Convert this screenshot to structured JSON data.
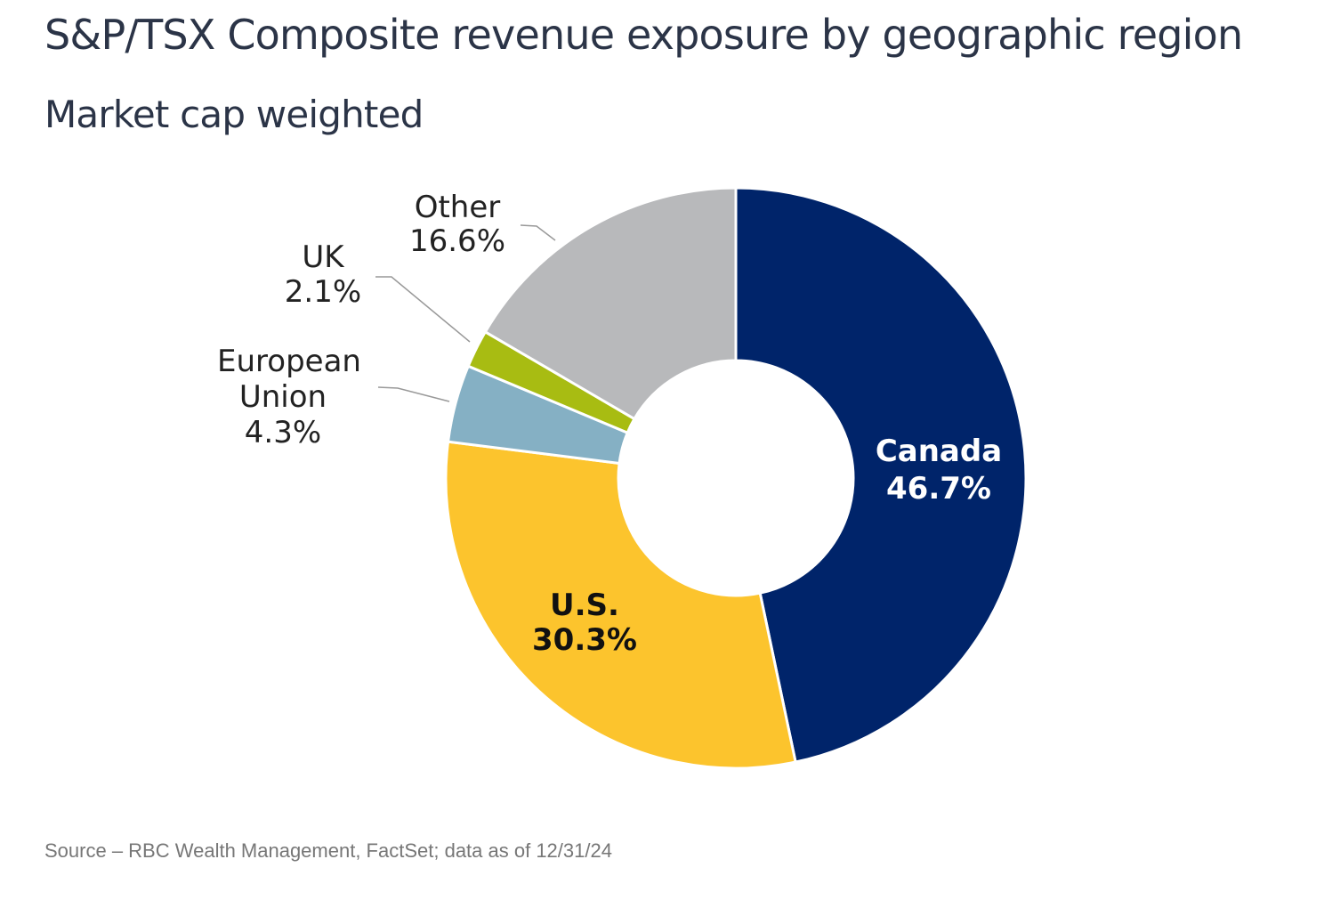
{
  "title": "S&P/TSX Composite revenue exposure by geographic region",
  "subtitle": "Market cap weighted",
  "source": "Source – RBC Wealth Management, FactSet; data as of 12/31/24",
  "chart_data": {
    "type": "pie",
    "donut": true,
    "title": "S&P/TSX Composite revenue exposure by geographic region",
    "subtitle": "Market cap weighted",
    "unit": "%",
    "slices": [
      {
        "name": "Canada",
        "value": 46.7,
        "label": "46.7%",
        "color": "#00246a",
        "label_color": "#ffffff"
      },
      {
        "name": "U.S.",
        "value": 30.3,
        "label": "30.3%",
        "color": "#fcc42d",
        "label_color": "#111111"
      },
      {
        "name": "European Union",
        "value": 4.3,
        "label": "4.3%",
        "color": "#85b0c4",
        "label_color": "#222222"
      },
      {
        "name": "UK",
        "value": 2.1,
        "label": "2.1%",
        "color": "#a8bc12",
        "label_color": "#222222"
      },
      {
        "name": "Other",
        "value": 16.6,
        "label": "16.6%",
        "color": "#b8b9bb",
        "label_color": "#222222"
      }
    ]
  }
}
